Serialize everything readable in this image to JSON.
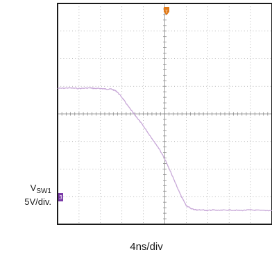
{
  "channel": {
    "name_main": "V",
    "name_sub": "SW1",
    "scale": "5V/div.",
    "marker": "3",
    "marker_color": "#7a3aa8"
  },
  "timebase": "4ns/div",
  "trigger_marker": {
    "label": "T",
    "color": "#e07a1a"
  },
  "chart_data": {
    "type": "line",
    "x_unit": "ns",
    "y_unit": "V",
    "xlim": [
      -20,
      20
    ],
    "ylim": [
      -20,
      20
    ],
    "x_div": 4,
    "y_div": 5,
    "grid": true,
    "series": [
      {
        "color": "#c8a8d8",
        "x": [
          -20,
          -18,
          -16,
          -14,
          -13,
          -12,
          -11,
          -10,
          -9,
          -8,
          -7,
          -6,
          -5,
          -4,
          -3,
          -2,
          -1,
          0,
          1,
          2,
          3,
          4,
          5,
          6,
          7,
          8,
          9,
          10,
          12,
          14,
          16,
          18,
          20
        ],
        "y": [
          4.6,
          4.7,
          4.6,
          4.7,
          4.6,
          4.6,
          4.5,
          4.5,
          4.1,
          3.0,
          1.6,
          0.3,
          -0.9,
          -2.2,
          -3.6,
          -5.0,
          -6.4,
          -8.2,
          -10.3,
          -12.6,
          -14.8,
          -16.6,
          -17.2,
          -17.4,
          -17.4,
          -17.5,
          -17.4,
          -17.5,
          -17.4,
          -17.5,
          -17.4,
          -17.5,
          -17.5
        ]
      }
    ]
  }
}
